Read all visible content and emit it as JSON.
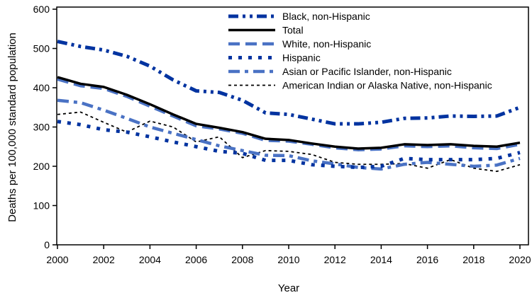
{
  "chart_data": {
    "type": "line",
    "xlabel": "Year",
    "ylabel": "Deaths per 100,000 standard population",
    "xlim": [
      2000,
      2020
    ],
    "ylim": [
      0,
      600
    ],
    "xticks": [
      2000,
      2002,
      2004,
      2006,
      2008,
      2010,
      2012,
      2014,
      2016,
      2018,
      2020
    ],
    "yticks": [
      0,
      100,
      200,
      300,
      400,
      500,
      600
    ],
    "grid": false,
    "legend_position": "top-right",
    "x": [
      2000,
      2001,
      2002,
      2003,
      2004,
      2005,
      2006,
      2007,
      2008,
      2009,
      2010,
      2011,
      2012,
      2013,
      2014,
      2015,
      2016,
      2017,
      2018,
      2019,
      2020
    ],
    "series": [
      {
        "name": "Black, non-Hispanic",
        "color": "#0033a0",
        "style": "dashdotdot",
        "values": [
          518,
          505,
          496,
          480,
          455,
          420,
          392,
          388,
          368,
          336,
          332,
          320,
          308,
          308,
          312,
          322,
          323,
          328,
          327,
          328,
          350
        ]
      },
      {
        "name": "Total",
        "color": "#000000",
        "style": "solid",
        "values": [
          427,
          410,
          402,
          382,
          358,
          332,
          308,
          298,
          287,
          270,
          267,
          258,
          250,
          245,
          247,
          256,
          254,
          256,
          252,
          250,
          260
        ]
      },
      {
        "name": "White, non-Hispanic",
        "color": "#4a72c4",
        "style": "dashed",
        "values": [
          422,
          405,
          398,
          378,
          353,
          328,
          303,
          295,
          284,
          266,
          264,
          256,
          247,
          242,
          244,
          252,
          250,
          252,
          247,
          245,
          256
        ]
      },
      {
        "name": "Hispanic",
        "color": "#0033a0",
        "style": "dotted",
        "values": [
          314,
          306,
          293,
          287,
          275,
          262,
          250,
          238,
          233,
          215,
          215,
          204,
          200,
          197,
          200,
          220,
          217,
          217,
          217,
          220,
          235
        ]
      },
      {
        "name": "Asian or Pacific Islander, non-Hispanic",
        "color": "#4a72c4",
        "style": "dashdot",
        "values": [
          368,
          362,
          343,
          322,
          300,
          284,
          268,
          252,
          240,
          228,
          227,
          214,
          206,
          197,
          193,
          205,
          210,
          205,
          200,
          203,
          220
        ]
      },
      {
        "name": "American Indian or Alaska Native, non-Hispanic",
        "color": "#000000",
        "style": "finedot",
        "values": [
          332,
          338,
          312,
          287,
          315,
          300,
          262,
          275,
          222,
          240,
          238,
          230,
          210,
          205,
          205,
          207,
          195,
          217,
          195,
          187,
          204
        ]
      }
    ]
  }
}
